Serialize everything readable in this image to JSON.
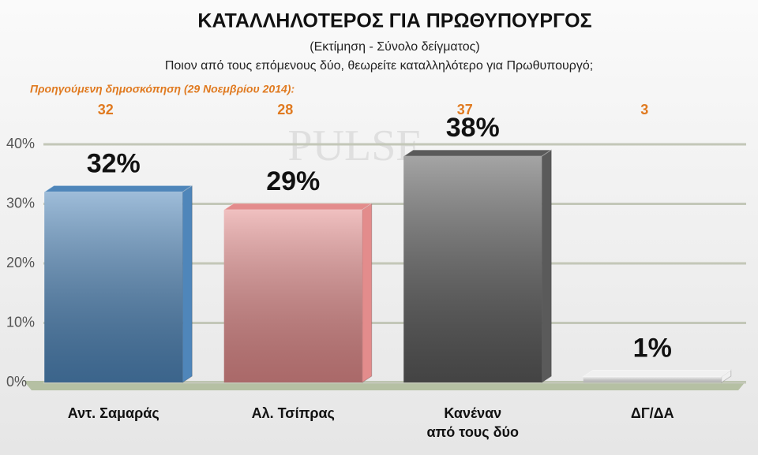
{
  "chart_data": {
    "type": "bar",
    "title": "ΚΑΤΑΛΛΗΛΟΤΕΡΟΣ ΓΙΑ ΠΡΩΘΥΠΟΥΡΓΟΣ",
    "subtitle": "(Εκτίμηση - Σύνολο δείγματος)",
    "question": "Ποιον από τους επόμενους δύο, θεωρείτε καταλληλότερο για Πρωθυπουργό;",
    "previous_label": "Προηγούμενη δημοσκόπηση  (29 Νοεμβρίου 2014):",
    "previous_values": [
      32,
      28,
      37,
      3
    ],
    "watermark": "PULSE",
    "categories": [
      "Αντ. Σαμαράς",
      "Αλ. Τσίπρας",
      "Κανέναν\nαπό τους δύο",
      "ΔΓ/ΔΑ"
    ],
    "values": [
      32,
      29,
      38,
      1
    ],
    "value_labels": [
      "32%",
      "29%",
      "38%",
      "1%"
    ],
    "colors": [
      "#4f86ba",
      "#e38c8c",
      "#5a5a5a",
      "#f0f0f0"
    ],
    "ylim": [
      0,
      40
    ],
    "yticks": [
      {
        "value": 0,
        "label": "0%"
      },
      {
        "value": 10,
        "label": "10%"
      },
      {
        "value": 20,
        "label": "20%"
      },
      {
        "value": 30,
        "label": "30%"
      },
      {
        "value": 40,
        "label": "40%"
      }
    ],
    "grid": true
  }
}
